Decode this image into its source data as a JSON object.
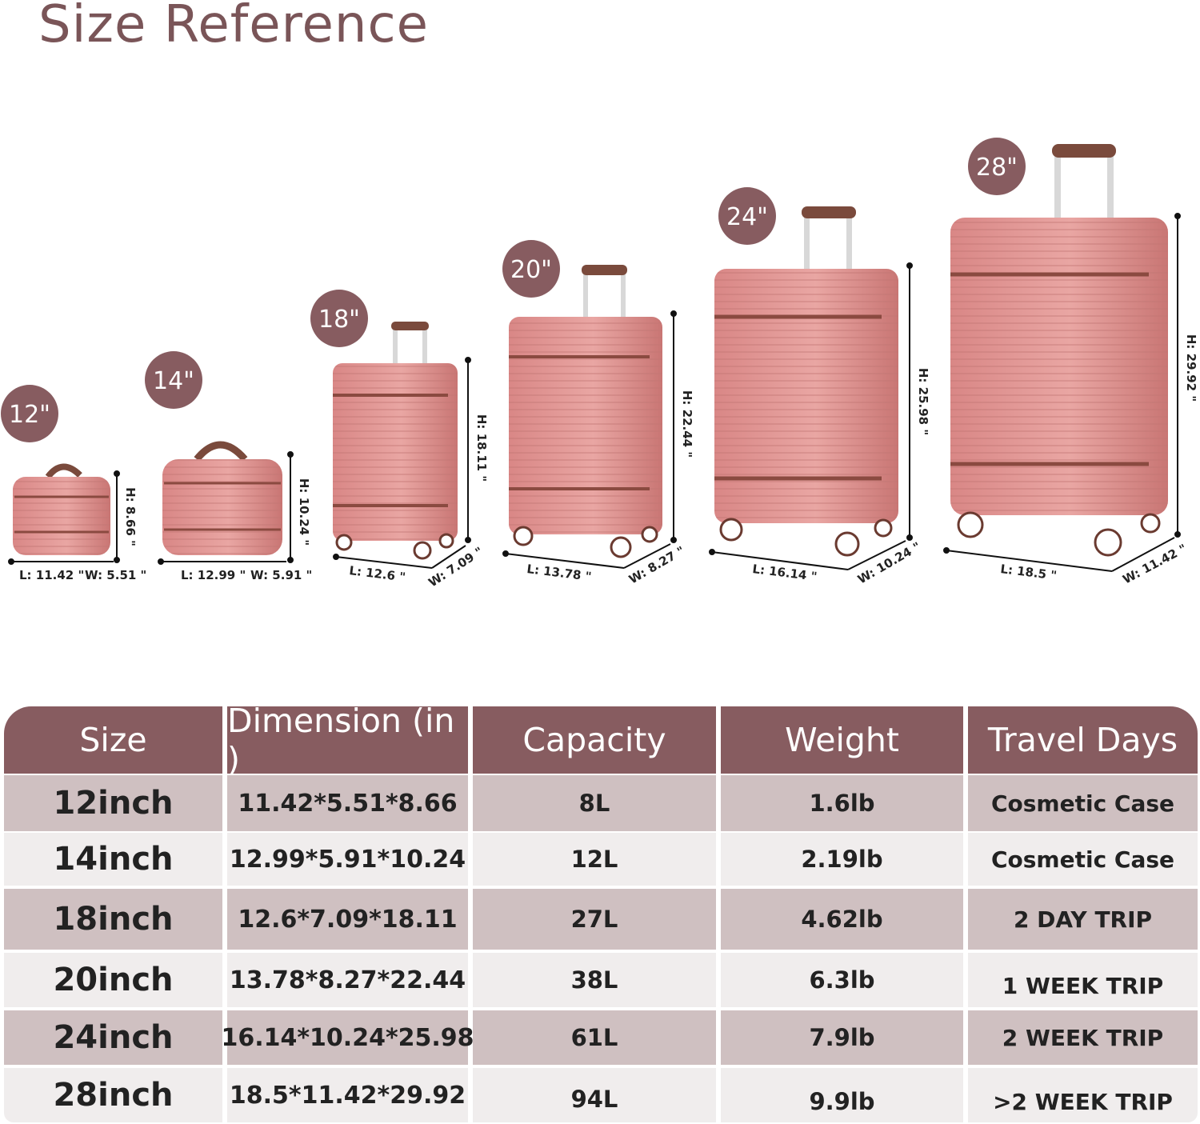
{
  "title": "Size Reference",
  "colors": {
    "title": "#7a5558",
    "badge": "#875c60",
    "suitcase": "#dc8d8c",
    "trim": "#8a4a40",
    "header": "#875c60",
    "row_dark": "#cfc0c1",
    "row_light": "#f0eded"
  },
  "luggage": [
    {
      "size": "12\"",
      "height_label": "H: 8.66 \"",
      "length_label": "L: 11.42 \"",
      "width_label": "W: 5.51 \""
    },
    {
      "size": "14\"",
      "height_label": "H: 10.24 \"",
      "length_label": "L: 12.99 \"",
      "width_label": "W: 5.91 \""
    },
    {
      "size": "18\"",
      "height_label": "H: 18.11 \"",
      "length_label": "L: 12.6 \"",
      "width_label": "W: 7.09 \""
    },
    {
      "size": "20\"",
      "height_label": "H: 22.44 \"",
      "length_label": "L: 13.78 \"",
      "width_label": "W: 8.27 \""
    },
    {
      "size": "24\"",
      "height_label": "H: 25.98 \"",
      "length_label": "L: 16.14 \"",
      "width_label": "W: 10.24 \""
    },
    {
      "size": "28\"",
      "height_label": "H: 29.92 \"",
      "length_label": "L: 18.5 \"",
      "width_label": "W: 11.42 \""
    }
  ],
  "table": {
    "headers": [
      "Size",
      "Dimension (in )",
      "Capacity",
      "Weight",
      "Travel Days"
    ],
    "rows": [
      [
        "12inch",
        "11.42*5.51*8.66",
        "8L",
        "1.6lb",
        "Cosmetic Case"
      ],
      [
        "14inch",
        "12.99*5.91*10.24",
        "12L",
        "2.19lb",
        "Cosmetic Case"
      ],
      [
        "18inch",
        "12.6*7.09*18.11",
        "27L",
        "4.62lb",
        "2 DAY  TRIP"
      ],
      [
        "20inch",
        "13.78*8.27*22.44",
        "38L",
        "6.3lb",
        "1 WEEK  TRIP"
      ],
      [
        "24inch",
        "16.14*10.24*25.98",
        "61L",
        "7.9lb",
        "2 WEEK  TRIP"
      ],
      [
        "28inch",
        "18.5*11.42*29.92",
        "94L",
        "9.9lb",
        ">2 WEEK  TRIP"
      ]
    ]
  }
}
